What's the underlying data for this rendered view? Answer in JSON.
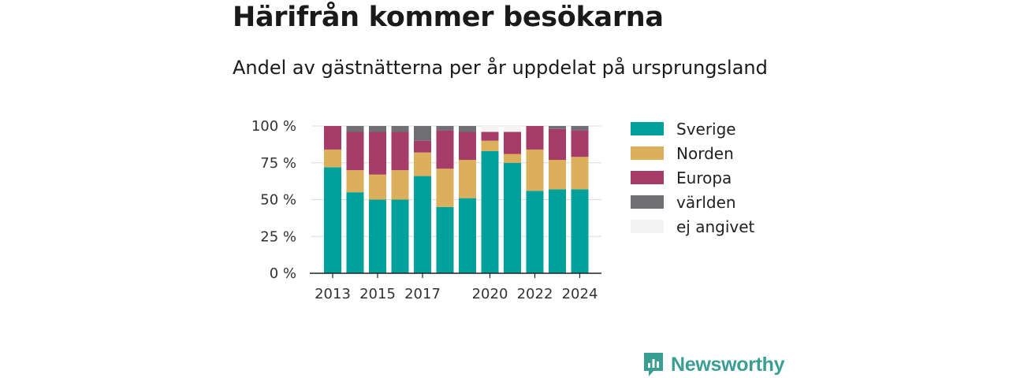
{
  "title": "Härifrån kommer besökarna",
  "subtitle": "Andel av gästnätterna per år uppdelat på ursprungsland",
  "brand": {
    "name": "Newsworthy"
  },
  "chart_data": {
    "type": "bar",
    "stacked": true,
    "title": "Härifrån kommer besökarna",
    "subtitle": "Andel av gästnätterna per år uppdelat på ursprungsland",
    "categories": [
      2013,
      2014,
      2015,
      2016,
      2017,
      2018,
      2019,
      2020,
      2021,
      2022,
      2023,
      2024
    ],
    "x_tick_labels": [
      "2013",
      "2015",
      "2017",
      "2020",
      "2022",
      "2024"
    ],
    "y_tick_labels": [
      "0 %",
      "25 %",
      "50 %",
      "75 %",
      "100 %"
    ],
    "ylim": [
      0,
      100
    ],
    "y_ticks": [
      0,
      25,
      50,
      75,
      100
    ],
    "grid": true,
    "legend_position": "right",
    "series": [
      {
        "name": "Sverige",
        "color": "#00a19a",
        "values": [
          72,
          55,
          50,
          50,
          66,
          45,
          51,
          83,
          75,
          56,
          57,
          57
        ]
      },
      {
        "name": "Norden",
        "color": "#dbaf5b",
        "values": [
          12,
          15,
          17,
          20,
          16,
          26,
          26,
          7,
          6,
          28,
          20,
          22
        ]
      },
      {
        "name": "Europa",
        "color": "#a53d68",
        "values": [
          16,
          26,
          29,
          26,
          8,
          26,
          19,
          6,
          15,
          16,
          21,
          18
        ]
      },
      {
        "name": "världen",
        "color": "#6e6e73",
        "values": [
          0,
          4,
          4,
          4,
          10,
          3,
          4,
          0,
          0,
          0,
          2,
          3
        ]
      },
      {
        "name": "ej angivet",
        "color": "#f4f4f4",
        "values": [
          0,
          0,
          0,
          0,
          0,
          0,
          0,
          4,
          4,
          0,
          0,
          0
        ]
      }
    ]
  }
}
